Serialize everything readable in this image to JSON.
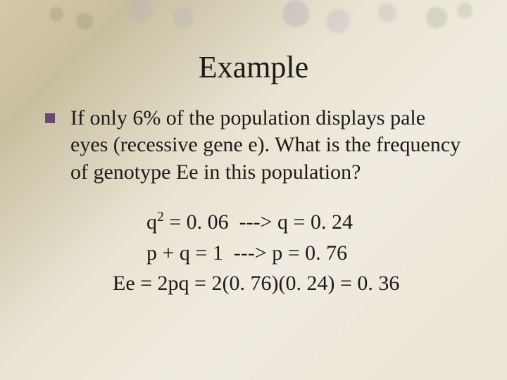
{
  "title": "Example",
  "bullet_color": "#6b4a72",
  "text_color": "#1a1a1a",
  "background_gradient": [
    "#d4c9a8",
    "#c8bfa0",
    "#e8e2d0",
    "#f0ebe0",
    "#ebe5d5"
  ],
  "title_fontsize": 44,
  "body_fontsize": 30,
  "question": "If only 6% of the population displays pale eyes (recessive gene e). What is the frequency of genotype Ee in this population?",
  "math": {
    "line1_pre": "q",
    "line1_sup": "2",
    "line1_post": " = 0. 06  ---> q = 0. 24",
    "line2": "p + q = 1  ---> p = 0. 76",
    "line3": "Ee = 2pq = 2(0. 76)(0. 24) = 0. 36"
  }
}
